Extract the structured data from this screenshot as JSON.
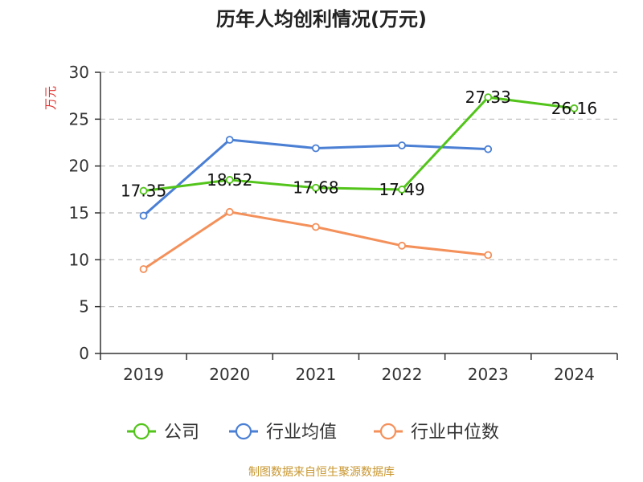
{
  "chart_data": {
    "type": "line",
    "title": "历年人均创利情况(万元)",
    "ylabel": "万元",
    "xlabel": "",
    "categories": [
      "2019",
      "2020",
      "2021",
      "2022",
      "2023",
      "2024"
    ],
    "ylim": [
      0,
      30
    ],
    "yticks": [
      "0",
      "5",
      "10",
      "15",
      "20",
      "25",
      "30"
    ],
    "grid": true,
    "legend_position": "bottom",
    "series": [
      {
        "name": "公司",
        "color": "#52c41a",
        "values": [
          17.35,
          18.52,
          17.68,
          17.49,
          27.33,
          26.16
        ],
        "labels": [
          "17.35",
          "18.52",
          "17.68",
          "17.49",
          "27.33",
          "26.16"
        ]
      },
      {
        "name": "行业均值",
        "color": "#4a7fd4",
        "values": [
          14.7,
          22.8,
          21.9,
          22.2,
          21.8,
          null
        ]
      },
      {
        "name": "行业中位数",
        "color": "#f4905a",
        "values": [
          9.0,
          15.1,
          13.5,
          11.5,
          10.5,
          null
        ]
      }
    ],
    "source": "制图数据来自恒生聚源数据库"
  },
  "colors": {
    "ylabel": "#e0312f",
    "source": "#c8962e",
    "axis": "#333333",
    "grid": "#bbbbbb"
  }
}
